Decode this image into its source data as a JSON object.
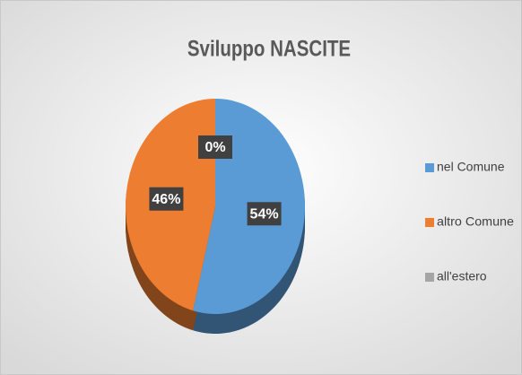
{
  "chart_data": {
    "type": "pie",
    "title": "Sviluppo NASCITE",
    "categories": [
      "nel Comune",
      "altro  Comune",
      "all'estero"
    ],
    "values": [
      54,
      46,
      0
    ],
    "value_labels": [
      "54%",
      "46%",
      "0%"
    ],
    "colors": [
      "#5b9bd5",
      "#ed7d31",
      "#a5a5a5"
    ],
    "legend": "right"
  }
}
